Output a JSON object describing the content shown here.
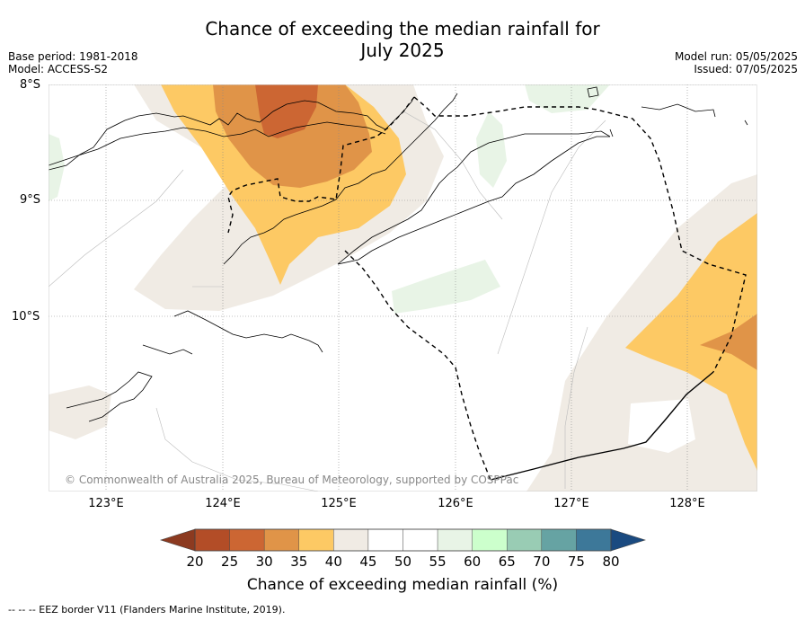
{
  "title_line1": "Chance of exceeding the median rainfall for",
  "title_line2": "July 2025",
  "meta_left": {
    "base_period": "Base period: 1981-2018",
    "model": "Model: ACCESS-S2"
  },
  "meta_right": {
    "model_run": "Model run: 05/05/2025",
    "issued": "Issued: 07/05/2025"
  },
  "lat_labels": [
    "8°S",
    "9°S",
    "10°S"
  ],
  "lon_labels": [
    "123°E",
    "124°E",
    "125°E",
    "126°E",
    "127°E",
    "128°E"
  ],
  "copyright": "© Commonwealth of Australia 2025, Bureau of Meteorology, supported by COSPPac",
  "colorbar": {
    "title": "Chance of exceeding median rainfall (%)",
    "ticks": [
      "20",
      "25",
      "30",
      "35",
      "40",
      "45",
      "50",
      "55",
      "60",
      "65",
      "70",
      "75",
      "80"
    ],
    "bins": [
      {
        "range": "20-25",
        "color": "#b34d27"
      },
      {
        "range": "25-30",
        "color": "#cc6633"
      },
      {
        "range": "30-35",
        "color": "#e09448"
      },
      {
        "range": "35-40",
        "color": "#fdc964"
      },
      {
        "range": "40-45",
        "color": "#f0ebe4"
      },
      {
        "range": "45-50",
        "color": "#ffffff"
      },
      {
        "range": "50-55",
        "color": "#ffffff"
      },
      {
        "range": "55-60",
        "color": "#e8f4e6"
      },
      {
        "range": "60-65",
        "color": "#ccffcc"
      },
      {
        "range": "65-70",
        "color": "#99ccb4"
      },
      {
        "range": "70-75",
        "color": "#66a3a3"
      },
      {
        "range": "75-80",
        "color": "#3d7899"
      }
    ],
    "under_color": "#8c3a20",
    "over_color": "#1a4a80"
  },
  "footer": "--  --  -- EEZ border V11 (Flanders Marine Institute, 2019)."
}
